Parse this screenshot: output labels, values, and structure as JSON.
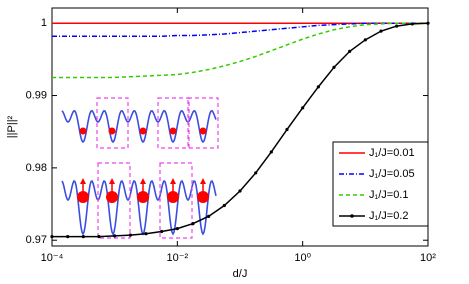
{
  "chart_data": {
    "type": "line",
    "xlabel": "d/J",
    "ylabel": "||P||²",
    "xscale": "log",
    "x": [
      0.0001,
      0.000178,
      0.000316,
      0.000562,
      0.001,
      0.00178,
      0.00316,
      0.00562,
      0.01,
      0.0178,
      0.0316,
      0.0562,
      0.1,
      0.178,
      0.316,
      0.562,
      1,
      1.78,
      3.16,
      5.62,
      10,
      17.8,
      31.6,
      56.2,
      100
    ],
    "series": [
      {
        "name": "J₁/J=0.01",
        "color": "#ff0000",
        "style": "solid",
        "markers": false,
        "values": [
          1,
          1,
          1,
          1,
          1,
          1,
          1,
          1,
          1,
          1,
          1,
          1,
          1,
          1,
          1,
          1,
          1,
          1,
          1,
          1,
          1,
          1,
          1,
          1,
          1
        ]
      },
      {
        "name": "J₁/J=0.05",
        "color": "#0000ff",
        "style": "dashdot",
        "markers": false,
        "values": [
          0.9982,
          0.9982,
          0.9982,
          0.9982,
          0.9982,
          0.9982,
          0.9982,
          0.9982,
          0.9983,
          0.9983,
          0.9984,
          0.9985,
          0.9987,
          0.9989,
          0.9991,
          0.9993,
          0.9995,
          0.9997,
          0.9998,
          0.9999,
          1,
          1,
          1,
          1,
          1
        ]
      },
      {
        "name": "J₁/J=0.1",
        "color": "#33cc00",
        "style": "dashed",
        "markers": false,
        "values": [
          0.9925,
          0.9925,
          0.9925,
          0.9925,
          0.9925,
          0.9926,
          0.9927,
          0.9928,
          0.9929,
          0.9932,
          0.9936,
          0.9941,
          0.9947,
          0.9954,
          0.9962,
          0.997,
          0.9978,
          0.9985,
          0.9991,
          0.9995,
          0.9998,
          0.9999,
          1,
          1,
          1
        ]
      },
      {
        "name": "J₁/J=0.2",
        "color": "#000000",
        "style": "solid",
        "markers": true,
        "values": [
          0.9705,
          0.9705,
          0.9705,
          0.9705,
          0.9706,
          0.9707,
          0.9709,
          0.9712,
          0.9716,
          0.9723,
          0.9733,
          0.9748,
          0.9768,
          0.9793,
          0.9822,
          0.9853,
          0.9883,
          0.9912,
          0.9939,
          0.9961,
          0.9977,
          0.9989,
          0.9996,
          0.9999,
          1
        ]
      }
    ],
    "xlim": [
      0.0001,
      100
    ],
    "xticks": [
      {
        "value": 0.0001,
        "label": "10⁻⁴"
      },
      {
        "value": 0.01,
        "label": "10⁻²"
      },
      {
        "value": 1,
        "label": "10⁰"
      },
      {
        "value": 100,
        "label": "10²"
      }
    ],
    "ylim": [
      0.9692,
      1.0021
    ],
    "yticks": [
      0.97,
      0.98,
      0.99,
      1
    ],
    "legend": "lower right"
  }
}
